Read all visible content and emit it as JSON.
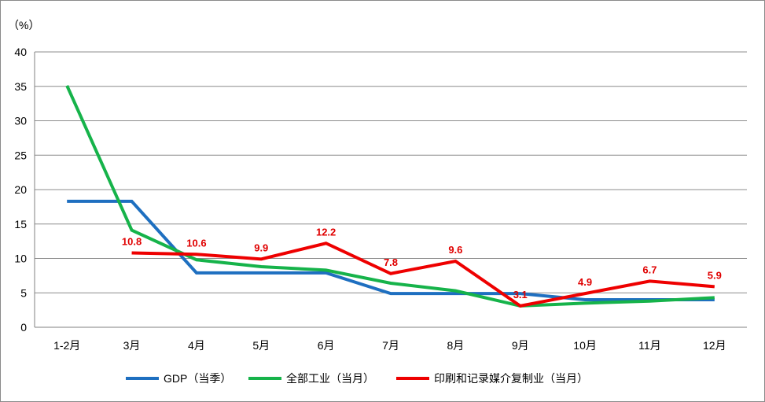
{
  "chart_data": {
    "type": "line",
    "unit_label": "（%）",
    "categories": [
      "1-2月",
      "3月",
      "4月",
      "5月",
      "6月",
      "7月",
      "8月",
      "9月",
      "10月",
      "11月",
      "12月"
    ],
    "ylim": [
      0,
      40
    ],
    "yticks": [
      0,
      5,
      10,
      15,
      20,
      25,
      30,
      35,
      40
    ],
    "grid": true,
    "legend_position": "bottom",
    "series": [
      {
        "name": "GDP（当季）",
        "color": "#1e6fc0",
        "values": [
          18.3,
          18.3,
          7.9,
          7.9,
          7.9,
          4.9,
          4.9,
          4.9,
          4.0,
          4.0,
          4.0
        ]
      },
      {
        "name": "全部工业（当月）",
        "color": "#16b34a",
        "values": [
          35.1,
          14.1,
          9.8,
          8.8,
          8.3,
          6.4,
          5.3,
          3.1,
          3.5,
          3.8,
          4.3
        ]
      },
      {
        "name": "印刷和记录媒介复制业（当月）",
        "color": "#ee0000",
        "values": [
          null,
          10.8,
          10.6,
          9.9,
          12.2,
          7.8,
          9.6,
          3.1,
          4.9,
          6.7,
          5.9
        ],
        "data_labels": [
          "",
          "10.8",
          "10.6",
          "9.9",
          "12.2",
          "7.8",
          "9.6",
          "3.1",
          "4.9",
          "6.7",
          "5.9"
        ]
      }
    ]
  }
}
